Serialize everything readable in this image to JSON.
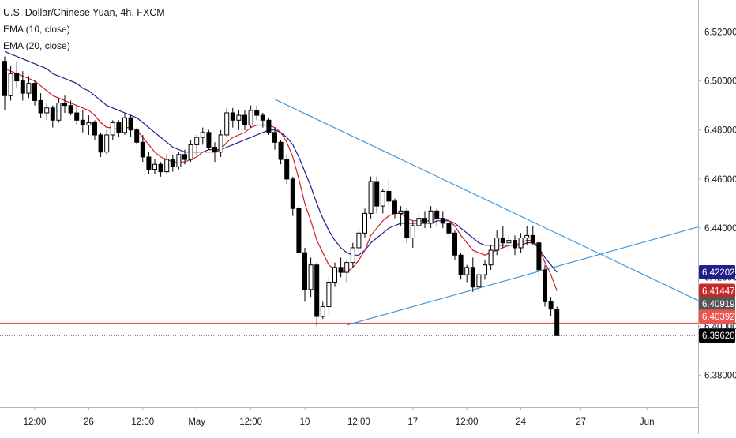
{
  "legend": {
    "title": "U.S. Dollar/Chinese Yuan, 4h, FXCM",
    "ema10": "EMA (10, close)",
    "ema20": "EMA (20, close)"
  },
  "colors": {
    "up": "#ffffff",
    "down": "#000000",
    "wick": "#000000",
    "ema10": "#d02020",
    "ema20": "#1e1e8c",
    "trendline": "#3b9ae1",
    "hline": "#e53935",
    "grid": "#ffffff",
    "axis": "#b2b5be"
  },
  "chart_data": {
    "type": "candlestick",
    "symbol": "U.S. Dollar/Chinese Yuan",
    "interval": "4h",
    "source": "FXCM",
    "ylim": [
      6.367,
      6.533
    ],
    "y_ticks": [
      "6.52000",
      "6.50000",
      "6.48000",
      "6.46000",
      "6.44000",
      "6.42000",
      "6.40000",
      "6.38000"
    ],
    "x_ticks": [
      "12:00",
      "26",
      "12:00",
      "May",
      "12:00",
      "10",
      "12:00",
      "17",
      "12:00",
      "24",
      "27",
      "Jun"
    ],
    "x_tick_index": [
      5,
      14,
      23,
      32,
      41,
      50,
      59,
      68,
      77,
      86,
      96,
      107
    ],
    "candles": [
      [
        6.508,
        6.51,
        6.488,
        6.494
      ],
      [
        6.494,
        6.506,
        6.492,
        6.503
      ],
      [
        6.503,
        6.508,
        6.497,
        6.5
      ],
      [
        6.5,
        6.504,
        6.492,
        6.495
      ],
      [
        6.495,
        6.502,
        6.493,
        6.499
      ],
      [
        6.499,
        6.5,
        6.49,
        6.492
      ],
      [
        6.492,
        6.495,
        6.485,
        6.487
      ],
      [
        6.487,
        6.491,
        6.484,
        6.489
      ],
      [
        6.489,
        6.49,
        6.481,
        6.484
      ],
      [
        6.484,
        6.493,
        6.483,
        6.491
      ],
      [
        6.491,
        6.494,
        6.487,
        6.49
      ],
      [
        6.49,
        6.492,
        6.486,
        6.487
      ],
      [
        6.487,
        6.49,
        6.482,
        6.484
      ],
      [
        6.484,
        6.488,
        6.479,
        6.482
      ],
      [
        6.482,
        6.486,
        6.478,
        6.483
      ],
      [
        6.483,
        6.484,
        6.476,
        6.478
      ],
      [
        6.478,
        6.479,
        6.469,
        6.471
      ],
      [
        6.471,
        6.48,
        6.47,
        6.478
      ],
      [
        6.478,
        6.484,
        6.476,
        6.483
      ],
      [
        6.483,
        6.484,
        6.477,
        6.479
      ],
      [
        6.479,
        6.487,
        6.478,
        6.485
      ],
      [
        6.485,
        6.486,
        6.477,
        6.48
      ],
      [
        6.48,
        6.481,
        6.474,
        6.475
      ],
      [
        6.475,
        6.478,
        6.467,
        6.469
      ],
      [
        6.469,
        6.471,
        6.462,
        6.464
      ],
      [
        6.464,
        6.468,
        6.462,
        6.466
      ],
      [
        6.466,
        6.467,
        6.461,
        6.463
      ],
      [
        6.463,
        6.47,
        6.462,
        6.468
      ],
      [
        6.468,
        6.47,
        6.463,
        6.465
      ],
      [
        6.465,
        6.471,
        6.464,
        6.47
      ],
      [
        6.47,
        6.472,
        6.466,
        6.468
      ],
      [
        6.468,
        6.476,
        6.467,
        6.474
      ],
      [
        6.474,
        6.478,
        6.47,
        6.477
      ],
      [
        6.477,
        6.481,
        6.474,
        6.479
      ],
      [
        6.479,
        6.48,
        6.472,
        6.473
      ],
      [
        6.473,
        6.475,
        6.467,
        6.471
      ],
      [
        6.471,
        6.48,
        6.469,
        6.478
      ],
      [
        6.478,
        6.489,
        6.477,
        6.487
      ],
      [
        6.487,
        6.489,
        6.481,
        6.484
      ],
      [
        6.484,
        6.488,
        6.48,
        6.486
      ],
      [
        6.486,
        6.488,
        6.48,
        6.482
      ],
      [
        6.482,
        6.49,
        6.481,
        6.488
      ],
      [
        6.488,
        6.49,
        6.484,
        6.486
      ],
      [
        6.486,
        6.487,
        6.481,
        6.484
      ],
      [
        6.484,
        6.485,
        6.478,
        6.479
      ],
      [
        6.479,
        6.481,
        6.472,
        6.475
      ],
      [
        6.475,
        6.476,
        6.466,
        6.468
      ],
      [
        6.468,
        6.47,
        6.458,
        6.46
      ],
      [
        6.46,
        6.461,
        6.445,
        6.448
      ],
      [
        6.448,
        6.45,
        6.428,
        6.43
      ],
      [
        6.43,
        6.432,
        6.41,
        6.415
      ],
      [
        6.415,
        6.428,
        6.412,
        6.425
      ],
      [
        6.425,
        6.426,
        6.4,
        6.404
      ],
      [
        6.404,
        6.41,
        6.403,
        6.408
      ],
      [
        6.408,
        6.42,
        6.405,
        6.418
      ],
      [
        6.418,
        6.426,
        6.416,
        6.424
      ],
      [
        6.424,
        6.428,
        6.42,
        6.422
      ],
      [
        6.422,
        6.427,
        6.418,
        6.426
      ],
      [
        6.426,
        6.434,
        6.424,
        6.432
      ],
      [
        6.432,
        6.44,
        6.43,
        6.438
      ],
      [
        6.438,
        6.448,
        6.436,
        6.446
      ],
      [
        6.446,
        6.461,
        6.444,
        6.459
      ],
      [
        6.459,
        6.461,
        6.446,
        6.449
      ],
      [
        6.449,
        6.456,
        6.446,
        6.455
      ],
      [
        6.455,
        6.46,
        6.449,
        6.451
      ],
      [
        6.451,
        6.452,
        6.444,
        6.446
      ],
      [
        6.446,
        6.449,
        6.441,
        6.447
      ],
      [
        6.447,
        6.448,
        6.434,
        6.436
      ],
      [
        6.436,
        6.443,
        6.432,
        6.441
      ],
      [
        6.441,
        6.446,
        6.439,
        6.444
      ],
      [
        6.444,
        6.447,
        6.44,
        6.442
      ],
      [
        6.442,
        6.449,
        6.44,
        6.447
      ],
      [
        6.447,
        6.448,
        6.441,
        6.444
      ],
      [
        6.444,
        6.447,
        6.44,
        6.442
      ],
      [
        6.442,
        6.444,
        6.436,
        6.438
      ],
      [
        6.438,
        6.439,
        6.427,
        6.429
      ],
      [
        6.429,
        6.43,
        6.419,
        6.421
      ],
      [
        6.421,
        6.425,
        6.418,
        6.424
      ],
      [
        6.424,
        6.428,
        6.414,
        6.416
      ],
      [
        6.416,
        6.423,
        6.414,
        6.421
      ],
      [
        6.421,
        6.427,
        6.419,
        6.425
      ],
      [
        6.425,
        6.433,
        6.423,
        6.431
      ],
      [
        6.431,
        6.439,
        6.429,
        6.436
      ],
      [
        6.436,
        6.441,
        6.432,
        6.434
      ],
      [
        6.434,
        6.437,
        6.431,
        6.435
      ],
      [
        6.435,
        6.437,
        6.429,
        6.432
      ],
      [
        6.432,
        6.438,
        6.43,
        6.436
      ],
      [
        6.436,
        6.441,
        6.433,
        6.437
      ],
      [
        6.437,
        6.441,
        6.433,
        6.434
      ],
      [
        6.434,
        6.436,
        6.42,
        6.423
      ],
      [
        6.423,
        6.425,
        6.408,
        6.41
      ],
      [
        6.41,
        6.412,
        6.404,
        6.407
      ],
      [
        6.407,
        6.408,
        6.396,
        6.3962
      ]
    ],
    "ema10": [
      6.505,
      6.504,
      6.503,
      6.502,
      6.501,
      6.5,
      6.498,
      6.496,
      6.494,
      6.493,
      6.492,
      6.491,
      6.49,
      6.489,
      6.488,
      6.486,
      6.483,
      6.481,
      6.481,
      6.48,
      6.481,
      6.481,
      6.48,
      6.477,
      6.474,
      6.471,
      6.469,
      6.468,
      6.467,
      6.467,
      6.467,
      6.468,
      6.469,
      6.471,
      6.471,
      6.471,
      6.472,
      6.475,
      6.477,
      6.478,
      6.479,
      6.481,
      6.482,
      6.482,
      6.482,
      6.481,
      6.479,
      6.475,
      6.469,
      6.46,
      6.45,
      6.443,
      6.435,
      6.43,
      6.425,
      6.423,
      6.422,
      6.422,
      6.424,
      6.427,
      6.431,
      6.437,
      6.44,
      6.443,
      6.445,
      6.446,
      6.446,
      6.444,
      6.443,
      6.443,
      6.443,
      6.443,
      6.444,
      6.444,
      6.443,
      6.441,
      6.437,
      6.434,
      6.431,
      6.43,
      6.429,
      6.43,
      6.431,
      6.432,
      6.433,
      6.433,
      6.434,
      6.435,
      6.435,
      6.432,
      6.426,
      6.421,
      6.41447
    ],
    "ema20": [
      6.512,
      6.511,
      6.51,
      6.509,
      6.508,
      6.507,
      6.506,
      6.505,
      6.503,
      6.502,
      6.501,
      6.5,
      6.499,
      6.497,
      6.496,
      6.494,
      6.492,
      6.49,
      6.489,
      6.488,
      6.487,
      6.486,
      6.485,
      6.483,
      6.481,
      6.479,
      6.477,
      6.475,
      6.473,
      6.472,
      6.471,
      6.471,
      6.471,
      6.471,
      6.472,
      6.472,
      6.472,
      6.473,
      6.474,
      6.475,
      6.476,
      6.477,
      6.478,
      6.479,
      6.48,
      6.48,
      6.479,
      6.477,
      6.474,
      6.469,
      6.463,
      6.457,
      6.45,
      6.444,
      6.439,
      6.435,
      6.432,
      6.43,
      6.429,
      6.429,
      6.431,
      6.434,
      6.436,
      6.438,
      6.44,
      6.441,
      6.442,
      6.442,
      6.442,
      6.442,
      6.442,
      6.442,
      6.443,
      6.443,
      6.443,
      6.442,
      6.44,
      6.438,
      6.436,
      6.434,
      6.433,
      6.433,
      6.433,
      6.433,
      6.433,
      6.433,
      6.433,
      6.434,
      6.434,
      6.432,
      6.428,
      6.425,
      6.42202
    ],
    "trendlines": [
      {
        "from": [
          45,
          6.4925
        ],
        "to": [
          120,
          6.4105
        ]
      },
      {
        "from": [
          57,
          6.4005
        ],
        "to": [
          120,
          6.4405
        ]
      }
    ],
    "hline": 6.4013,
    "last_price_line": 6.3962,
    "price_labels": [
      {
        "text": "6.42202",
        "value": 6.42202,
        "bg": "#1e1e8c",
        "fg": "#ffffff"
      },
      {
        "text": "6.41447",
        "value": 6.41447,
        "bg": "#c62828",
        "fg": "#ffffff"
      },
      {
        "text": "6.40919",
        "value": 6.40919,
        "bg": "#555555",
        "fg": "#ffffff"
      },
      {
        "text": "6.40392",
        "value": 6.40392,
        "bg": "#ef5350",
        "fg": "#ffffff"
      },
      {
        "text": "6.39620",
        "value": 6.3962,
        "bg": "#000000",
        "fg": "#ffffff"
      }
    ]
  }
}
